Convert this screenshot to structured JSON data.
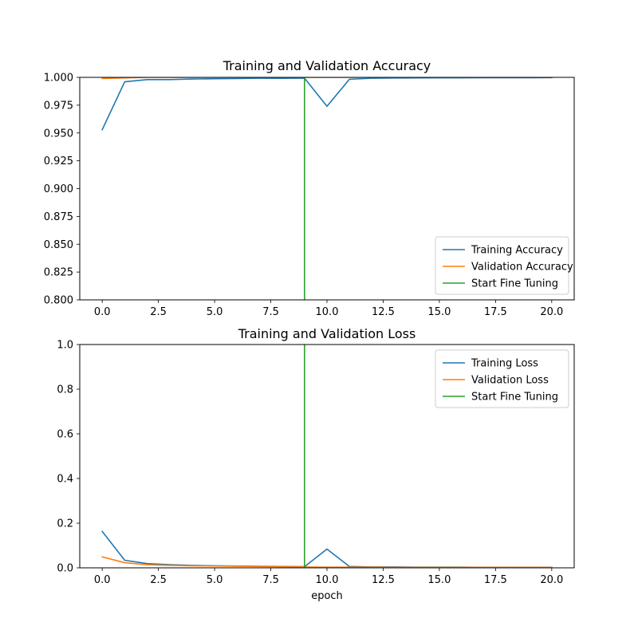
{
  "chart_data": [
    {
      "type": "line",
      "title": "Training and Validation Accuracy",
      "xlabel": "",
      "ylabel": "",
      "xlim": [
        -1,
        21
      ],
      "ylim": [
        0.8,
        1.0
      ],
      "xticks": [
        0,
        2.5,
        5,
        7.5,
        10,
        12.5,
        15,
        17.5,
        20
      ],
      "xtick_labels": [
        "0.0",
        "2.5",
        "5.0",
        "7.5",
        "10.0",
        "12.5",
        "15.0",
        "17.5",
        "20.0"
      ],
      "yticks": [
        0.8,
        0.825,
        0.85,
        0.875,
        0.9,
        0.925,
        0.95,
        0.975,
        1.0
      ],
      "ytick_labels": [
        "0.800",
        "0.825",
        "0.850",
        "0.875",
        "0.900",
        "0.925",
        "0.950",
        "0.975",
        "1.000"
      ],
      "legend_position": "lower-right",
      "grid": false,
      "series": [
        {
          "name": "Training Accuracy",
          "color": "#1f77b4",
          "x": [
            0,
            1,
            2,
            3,
            4,
            5,
            6,
            7,
            8,
            9,
            10,
            11,
            12,
            13,
            14,
            15,
            16,
            17,
            18,
            19,
            20
          ],
          "y": [
            0.953,
            0.996,
            0.998,
            0.998,
            0.9985,
            0.9988,
            0.999,
            0.9992,
            0.9991,
            0.9993,
            0.974,
            0.9983,
            0.9992,
            0.9994,
            0.9995,
            0.9996,
            0.9996,
            0.9997,
            0.9997,
            0.9997,
            0.9998
          ]
        },
        {
          "name": "Validation Accuracy",
          "color": "#ff7f0e",
          "x": [
            0,
            1,
            2,
            3,
            4,
            5,
            6,
            7,
            8,
            9,
            10,
            11,
            12,
            13,
            14,
            15,
            16,
            17,
            18,
            19,
            20
          ],
          "y": [
            0.999,
            0.9995,
            1.0,
            1.0,
            1.0,
            1.0,
            1.0,
            1.0,
            1.0,
            1.0,
            1.0,
            1.0,
            1.0,
            1.0,
            1.0,
            1.0,
            1.0,
            1.0,
            1.0,
            1.0,
            1.0
          ]
        },
        {
          "name": "Start Fine Tuning",
          "color": "#2ca02c",
          "x": [
            9,
            9
          ],
          "y": [
            0.8,
            1.0
          ]
        }
      ]
    },
    {
      "type": "line",
      "title": "Training and Validation Loss",
      "xlabel": "epoch",
      "ylabel": "",
      "xlim": [
        -1,
        21
      ],
      "ylim": [
        0.0,
        1.0
      ],
      "xticks": [
        0,
        2.5,
        5,
        7.5,
        10,
        12.5,
        15,
        17.5,
        20
      ],
      "xtick_labels": [
        "0.0",
        "2.5",
        "5.0",
        "7.5",
        "10.0",
        "12.5",
        "15.0",
        "17.5",
        "20.0"
      ],
      "yticks": [
        0.0,
        0.2,
        0.4,
        0.6,
        0.8,
        1.0
      ],
      "ytick_labels": [
        "0.0",
        "0.2",
        "0.4",
        "0.6",
        "0.8",
        "1.0"
      ],
      "legend_position": "upper-right",
      "grid": false,
      "series": [
        {
          "name": "Training Loss",
          "color": "#1f77b4",
          "x": [
            0,
            1,
            2,
            3,
            4,
            5,
            6,
            7,
            8,
            9,
            10,
            11,
            12,
            13,
            14,
            15,
            16,
            17,
            18,
            19,
            20
          ],
          "y": [
            0.163,
            0.034,
            0.019,
            0.014,
            0.011,
            0.009,
            0.008,
            0.007,
            0.006,
            0.005,
            0.084,
            0.006,
            0.004,
            0.004,
            0.003,
            0.003,
            0.003,
            0.002,
            0.002,
            0.002,
            0.002
          ]
        },
        {
          "name": "Validation Loss",
          "color": "#ff7f0e",
          "x": [
            0,
            1,
            2,
            3,
            4,
            5,
            6,
            7,
            8,
            9,
            10,
            11,
            12,
            13,
            14,
            15,
            16,
            17,
            18,
            19,
            20
          ],
          "y": [
            0.049,
            0.023,
            0.014,
            0.011,
            0.009,
            0.008,
            0.007,
            0.006,
            0.005,
            0.004,
            0.003,
            0.003,
            0.003,
            0.002,
            0.002,
            0.002,
            0.002,
            0.002,
            0.002,
            0.002,
            0.002
          ]
        },
        {
          "name": "Start Fine Tuning",
          "color": "#2ca02c",
          "x": [
            9,
            9
          ],
          "y": [
            0.0,
            1.0
          ]
        }
      ]
    }
  ]
}
